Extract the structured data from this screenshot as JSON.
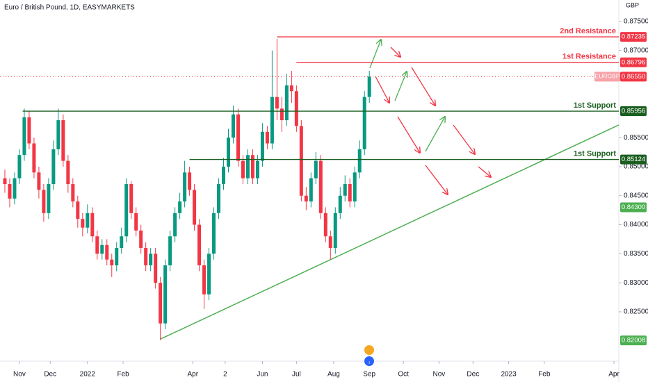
{
  "chart_data": {
    "type": "candlestick",
    "title": "Euro / British Pound, 1D, EASYMARKETS",
    "currency": "GBP",
    "up_color": "#089981",
    "down_color": "#f23645",
    "ylim": [
      0.8165,
      0.8787
    ],
    "yticks": [
      {
        "value": 0.875,
        "label": "0.87500"
      },
      {
        "value": 0.87,
        "label": "0.87000"
      },
      {
        "value": 0.855,
        "label": "0.85500"
      },
      {
        "value": 0.85,
        "label": "0.85000"
      },
      {
        "value": 0.845,
        "label": "0.84500"
      },
      {
        "value": 0.84,
        "label": "0.84000"
      },
      {
        "value": 0.835,
        "label": "0.83500"
      },
      {
        "value": 0.83,
        "label": "0.83000"
      },
      {
        "value": 0.825,
        "label": "0.82500"
      }
    ],
    "xlim": [
      -12,
      370
    ],
    "xticks": [
      {
        "value": 0,
        "label": "Nov"
      },
      {
        "value": 19,
        "label": "Dec"
      },
      {
        "value": 42,
        "label": "2022"
      },
      {
        "value": 64,
        "label": "Feb"
      },
      {
        "value": 107,
        "label": "Apr"
      },
      {
        "value": 127,
        "label": "2"
      },
      {
        "value": 150,
        "label": "Jun"
      },
      {
        "value": 171,
        "label": "Jul"
      },
      {
        "value": 194,
        "label": "Aug"
      },
      {
        "value": 216,
        "label": "Sep"
      },
      {
        "value": 237,
        "label": "Oct"
      },
      {
        "value": 259,
        "label": "Nov"
      },
      {
        "value": 280,
        "label": "Dec"
      },
      {
        "value": 302,
        "label": "2023"
      },
      {
        "value": 324,
        "label": "Feb"
      },
      {
        "value": 367,
        "label": "Apr"
      }
    ],
    "ohlc": {
      "x": [
        -9,
        -6,
        -3,
        0,
        3,
        6,
        9,
        12,
        15,
        18,
        21,
        24,
        27,
        30,
        33,
        36,
        39,
        42,
        45,
        48,
        51,
        54,
        57,
        60,
        63,
        66,
        69,
        72,
        75,
        78,
        81,
        84,
        87,
        90,
        93,
        96,
        99,
        102,
        105,
        108,
        111,
        114,
        117,
        120,
        123,
        126,
        129,
        132,
        135,
        138,
        141,
        144,
        147,
        150,
        153,
        156,
        159,
        162,
        165,
        168,
        171,
        174,
        177,
        180,
        183,
        186,
        189,
        192,
        195,
        198,
        201,
        204,
        207,
        210,
        213,
        216
      ],
      "open": [
        0.848,
        0.847,
        0.8445,
        0.848,
        0.852,
        0.8585,
        0.854,
        0.849,
        0.846,
        0.842,
        0.847,
        0.853,
        0.858,
        0.851,
        0.847,
        0.844,
        0.841,
        0.8395,
        0.842,
        0.838,
        0.835,
        0.8365,
        0.834,
        0.833,
        0.836,
        0.838,
        0.847,
        0.842,
        0.839,
        0.836,
        0.833,
        0.835,
        0.83,
        0.823,
        0.833,
        0.838,
        0.842,
        0.844,
        0.849,
        0.846,
        0.84,
        0.833,
        0.828,
        0.835,
        0.842,
        0.847,
        0.85,
        0.855,
        0.859,
        0.851,
        0.848,
        0.852,
        0.848,
        0.851,
        0.856,
        0.854,
        0.862,
        0.86,
        0.858,
        0.864,
        0.863,
        0.857,
        0.845,
        0.844,
        0.848,
        0.851,
        0.842,
        0.838,
        0.836,
        0.842,
        0.845,
        0.847,
        0.844,
        0.849,
        0.853,
        0.862
      ],
      "high": [
        0.8495,
        0.848,
        0.849,
        0.853,
        0.86,
        0.8595,
        0.855,
        0.85,
        0.847,
        0.848,
        0.8545,
        0.86,
        0.859,
        0.852,
        0.848,
        0.845,
        0.842,
        0.8435,
        0.843,
        0.839,
        0.8375,
        0.8375,
        0.835,
        0.837,
        0.8395,
        0.848,
        0.8475,
        0.843,
        0.84,
        0.837,
        0.836,
        0.836,
        0.831,
        0.834,
        0.839,
        0.843,
        0.8455,
        0.851,
        0.85,
        0.847,
        0.841,
        0.834,
        0.836,
        0.843,
        0.848,
        0.8515,
        0.8565,
        0.8605,
        0.86,
        0.852,
        0.853,
        0.853,
        0.852,
        0.8575,
        0.857,
        0.87,
        0.872,
        0.862,
        0.866,
        0.8665,
        0.864,
        0.858,
        0.8465,
        0.849,
        0.8525,
        0.852,
        0.843,
        0.839,
        0.843,
        0.8465,
        0.8485,
        0.848,
        0.85,
        0.8545,
        0.863,
        0.8665
      ],
      "low": [
        0.8455,
        0.843,
        0.8435,
        0.847,
        0.851,
        0.853,
        0.848,
        0.8445,
        0.8405,
        0.841,
        0.846,
        0.852,
        0.85,
        0.8455,
        0.843,
        0.8395,
        0.838,
        0.8385,
        0.837,
        0.834,
        0.834,
        0.833,
        0.831,
        0.832,
        0.835,
        0.837,
        0.841,
        0.838,
        0.835,
        0.832,
        0.832,
        0.829,
        0.8201,
        0.822,
        0.832,
        0.837,
        0.841,
        0.843,
        0.845,
        0.839,
        0.832,
        0.8255,
        0.827,
        0.834,
        0.841,
        0.846,
        0.849,
        0.854,
        0.85,
        0.847,
        0.847,
        0.847,
        0.847,
        0.85,
        0.853,
        0.853,
        0.858,
        0.856,
        0.857,
        0.861,
        0.856,
        0.844,
        0.8425,
        0.843,
        0.847,
        0.841,
        0.837,
        0.834,
        0.835,
        0.841,
        0.844,
        0.843,
        0.843,
        0.848,
        0.852,
        0.861
      ],
      "close": [
        0.847,
        0.8445,
        0.848,
        0.852,
        0.8585,
        0.854,
        0.849,
        0.846,
        0.842,
        0.847,
        0.853,
        0.858,
        0.851,
        0.847,
        0.844,
        0.841,
        0.8395,
        0.842,
        0.838,
        0.835,
        0.8365,
        0.834,
        0.833,
        0.836,
        0.838,
        0.847,
        0.842,
        0.839,
        0.836,
        0.833,
        0.835,
        0.83,
        0.823,
        0.833,
        0.838,
        0.842,
        0.844,
        0.849,
        0.846,
        0.84,
        0.833,
        0.828,
        0.835,
        0.842,
        0.847,
        0.85,
        0.855,
        0.859,
        0.851,
        0.848,
        0.852,
        0.848,
        0.851,
        0.856,
        0.854,
        0.862,
        0.86,
        0.858,
        0.864,
        0.863,
        0.857,
        0.845,
        0.844,
        0.848,
        0.851,
        0.842,
        0.838,
        0.836,
        0.842,
        0.845,
        0.847,
        0.844,
        0.849,
        0.853,
        0.862,
        0.8655
      ]
    },
    "levels": [
      {
        "name": "2nd Resistance",
        "value": 0.87235,
        "label": "0.87235",
        "start": 159,
        "color": "#f23645"
      },
      {
        "name": "1st Resistance",
        "value": 0.86796,
        "label": "0.86796",
        "start": 171,
        "color": "#f23645"
      },
      {
        "name": "1st Support",
        "value": 0.85956,
        "label": "0.85956",
        "start": 2,
        "color": "#1b5e20"
      },
      {
        "name": "1st Support",
        "value": 0.85124,
        "label": "0.85124",
        "start": 105,
        "color": "#1b5e20"
      }
    ],
    "current": {
      "symbol": "EURGBP",
      "value": 0.8655,
      "label": "0.86550",
      "color": "#f23645"
    },
    "markers": [
      {
        "value": 0.843,
        "label": "0.84300",
        "color": "#4caf50"
      },
      {
        "value": 0.82008,
        "label": "0.82008",
        "color": "#4caf50"
      }
    ],
    "trendline": {
      "x": [
        87,
        370
      ],
      "values": [
        0.8203,
        0.85718
      ],
      "color": "#4caf50"
    }
  }
}
